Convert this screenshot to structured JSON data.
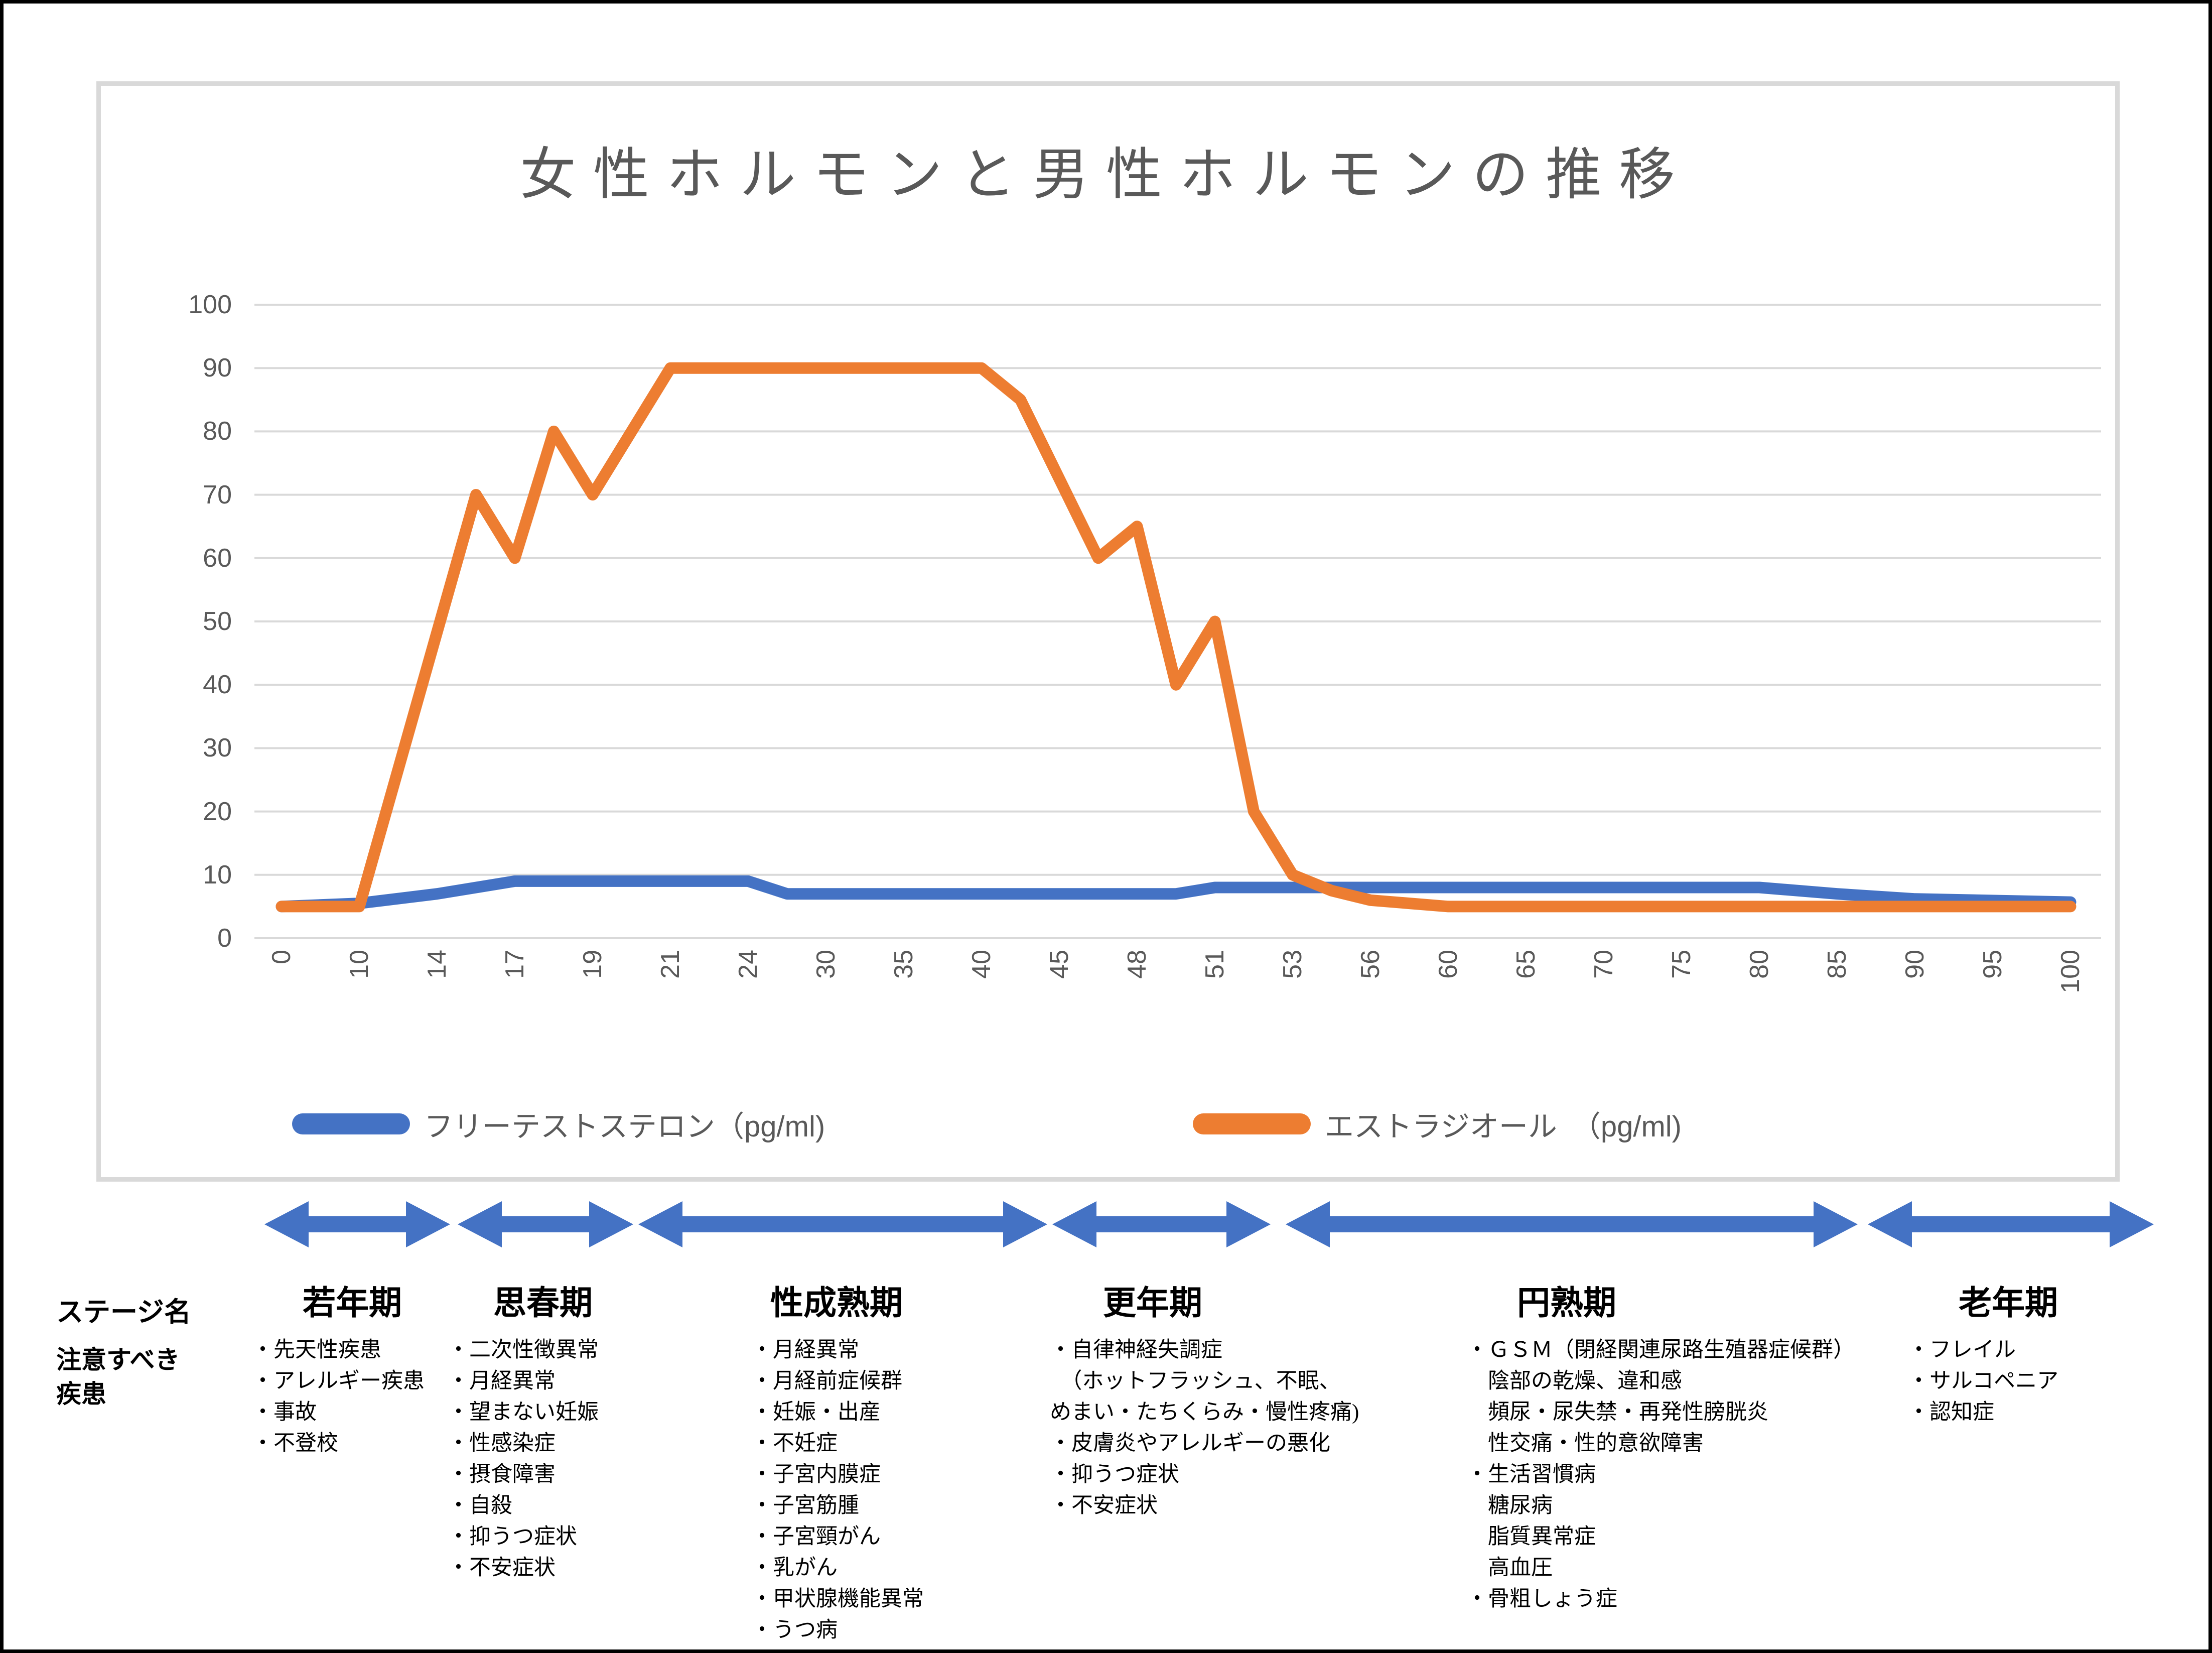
{
  "chart": {
    "title": "女性ホルモンと男性ホルモンの推移",
    "y_ticks": [
      100,
      90,
      80,
      70,
      60,
      50,
      40,
      30,
      20,
      10,
      0
    ],
    "x_labels": [
      "0",
      "10",
      "14",
      "17",
      "19",
      "21",
      "24",
      "30",
      "35",
      "40",
      "45",
      "48",
      "51",
      "53",
      "56",
      "60",
      "65",
      "70",
      "75",
      "80",
      "85",
      "90",
      "95",
      "100"
    ],
    "legend": [
      {
        "label": "フリーテストステロン（pg/ml)",
        "color": "#4472C4"
      },
      {
        "label": "エストラジオール　（pg/ml)",
        "color": "#ED7D31"
      }
    ]
  },
  "chart_data": {
    "type": "line",
    "title": "女性ホルモンと男性ホルモンの推移",
    "categories": [
      0,
      10,
      14,
      17,
      19,
      21,
      24,
      30,
      35,
      40,
      45,
      48,
      51,
      53,
      56,
      60,
      65,
      70,
      75,
      80,
      85,
      90,
      95,
      100
    ],
    "xlabel": "",
    "ylabel": "",
    "ylim": [
      0,
      100
    ],
    "grid": true,
    "legend_position": "bottom",
    "series": [
      {
        "name": "フリーテストステロン（pg/ml)",
        "color": "#4472C4",
        "points_age_value": [
          [
            0,
            5
          ],
          [
            10,
            5.5
          ],
          [
            14,
            7
          ],
          [
            17,
            9
          ],
          [
            24,
            9
          ],
          [
            27,
            7
          ],
          [
            49.5,
            7
          ],
          [
            51,
            8
          ],
          [
            80,
            8
          ],
          [
            85,
            7
          ],
          [
            90,
            6.2
          ],
          [
            100,
            5.7
          ]
        ]
      },
      {
        "name": "エストラジオール　（pg/ml)",
        "color": "#ED7D31",
        "points_age_value": [
          [
            0,
            5
          ],
          [
            10,
            5
          ],
          [
            15.5,
            70
          ],
          [
            17,
            60
          ],
          [
            18,
            80
          ],
          [
            19,
            70
          ],
          [
            21,
            90
          ],
          [
            40,
            90
          ],
          [
            42.5,
            85
          ],
          [
            46.5,
            60
          ],
          [
            48,
            65
          ],
          [
            49.5,
            40
          ],
          [
            51,
            50
          ],
          [
            52,
            20
          ],
          [
            53,
            10
          ],
          [
            54.5,
            7.5
          ],
          [
            56,
            6
          ],
          [
            60,
            5
          ],
          [
            100,
            5
          ]
        ]
      }
    ]
  },
  "stage_table": {
    "row_header_stage": "ステージ名",
    "row_header_disease_lines": [
      "注意すべき",
      "疾患"
    ],
    "arrow_color": "#4472C4",
    "stages": [
      {
        "name": "若年期",
        "diseases": [
          "・先天性疾患",
          "・アレルギー疾患",
          "・事故",
          "・不登校"
        ]
      },
      {
        "name": "思春期",
        "diseases": [
          "・二次性徴異常",
          "・月経異常",
          "・望まない妊娠",
          "・性感染症",
          "・摂食障害",
          "・自殺",
          "・抑うつ症状",
          "・不安症状"
        ]
      },
      {
        "name": "性成熟期",
        "diseases": [
          "・月経異常",
          "・月経前症候群",
          "・妊娠・出産",
          "・不妊症",
          "・子宮内膜症",
          "・子宮筋腫",
          "・子宮頸がん",
          "・乳がん",
          "・甲状腺機能異常",
          "・うつ病"
        ]
      },
      {
        "name": "更年期",
        "diseases": [
          "・自律神経失調症",
          "　（ホットフラッシュ、不眠、",
          "めまい・たちくらみ・慢性疼痛)",
          "・皮膚炎やアレルギーの悪化",
          "・抑うつ症状",
          "・不安症状"
        ]
      },
      {
        "name": "円熟期",
        "diseases": [
          "・ＧＳＭ（閉経関連尿路生殖器症候群）",
          "　陰部の乾燥、違和感",
          "　頻尿・尿失禁・再発性膀胱炎",
          "　性交痛・性的意欲障害",
          "・生活習慣病",
          "　糖尿病",
          "　脂質異常症",
          "　高血圧",
          "・骨粗しょう症"
        ]
      },
      {
        "name": "老年期",
        "diseases": [
          "・フレイル",
          "・サルコペニア",
          "・認知症"
        ]
      }
    ]
  },
  "colors": {
    "testosterone_line": "#4472C4",
    "estradiol_line": "#ED7D31",
    "stage_arrow": "#4472C4",
    "gridline": "#d9d9d9",
    "chart_border": "#d9d9d9",
    "chart_text": "#595959",
    "annotation_text": "#000000"
  }
}
